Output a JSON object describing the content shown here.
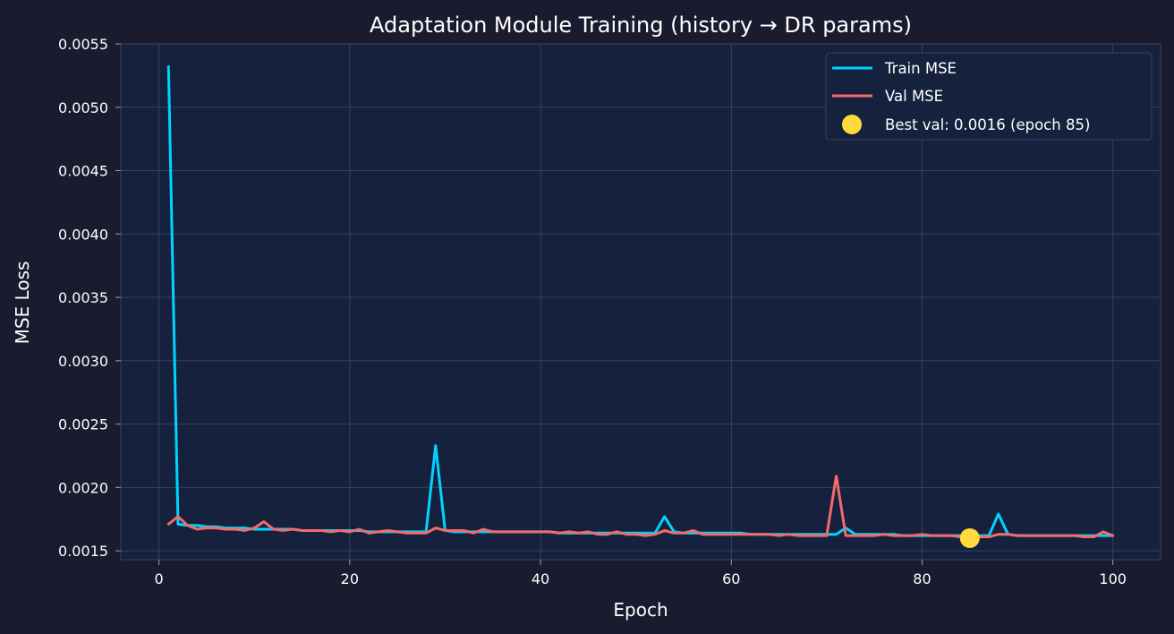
{
  "chart_data": {
    "type": "line",
    "title": "Adaptation Module Training (history → DR params)",
    "xlabel": "Epoch",
    "ylabel": "MSE Loss",
    "xlim": [
      -4,
      105
    ],
    "ylim": [
      0.00143,
      0.0055
    ],
    "x_ticks": [
      0,
      20,
      40,
      60,
      80,
      100
    ],
    "x_tick_labels": [
      "0",
      "20",
      "40",
      "60",
      "80",
      "100"
    ],
    "y_ticks": [
      0.0015,
      0.002,
      0.0025,
      0.003,
      0.0035,
      0.004,
      0.0045,
      0.005,
      0.0055
    ],
    "y_tick_labels": [
      "0.0015",
      "0.0020",
      "0.0025",
      "0.0030",
      "0.0035",
      "0.0040",
      "0.0045",
      "0.0050",
      "0.0055"
    ],
    "grid": true,
    "legend_position": "top-right",
    "colors": {
      "background": "#1a1b2e",
      "plot_area": "#16213e",
      "grid": "#3a4766",
      "spine": "#3a4460",
      "train": "#00d4ff",
      "val": "#f26b6b",
      "best": "#ffd93d"
    },
    "series": [
      {
        "name": "Train MSE",
        "color": "#00d4ff",
        "x": [
          1,
          2,
          3,
          4,
          5,
          6,
          7,
          8,
          9,
          10,
          11,
          12,
          13,
          14,
          15,
          16,
          17,
          18,
          19,
          20,
          21,
          22,
          23,
          24,
          25,
          26,
          27,
          28,
          29,
          30,
          31,
          32,
          33,
          34,
          35,
          36,
          37,
          38,
          39,
          40,
          41,
          42,
          43,
          44,
          45,
          46,
          47,
          48,
          49,
          50,
          51,
          52,
          53,
          54,
          55,
          56,
          57,
          58,
          59,
          60,
          61,
          62,
          63,
          64,
          65,
          66,
          67,
          68,
          69,
          70,
          71,
          72,
          73,
          74,
          75,
          76,
          77,
          78,
          79,
          80,
          81,
          82,
          83,
          84,
          85,
          86,
          87,
          88,
          89,
          90,
          91,
          92,
          93,
          94,
          95,
          96,
          97,
          98,
          99,
          100
        ],
        "values": [
          0.00532,
          0.00171,
          0.0017,
          0.0017,
          0.00169,
          0.00169,
          0.00168,
          0.00168,
          0.00168,
          0.00167,
          0.00167,
          0.00167,
          0.00167,
          0.00167,
          0.00166,
          0.00166,
          0.00166,
          0.00166,
          0.00166,
          0.00166,
          0.00166,
          0.00165,
          0.00165,
          0.00165,
          0.00165,
          0.00165,
          0.00165,
          0.00165,
          0.00233,
          0.00166,
          0.00165,
          0.00165,
          0.00165,
          0.00165,
          0.00165,
          0.00165,
          0.00165,
          0.00165,
          0.00165,
          0.00165,
          0.00165,
          0.00164,
          0.00164,
          0.00164,
          0.00164,
          0.00164,
          0.00164,
          0.00164,
          0.00164,
          0.00164,
          0.00164,
          0.00164,
          0.00177,
          0.00165,
          0.00164,
          0.00164,
          0.00164,
          0.00164,
          0.00164,
          0.00164,
          0.00164,
          0.00163,
          0.00163,
          0.00163,
          0.00163,
          0.00163,
          0.00163,
          0.00163,
          0.00163,
          0.00163,
          0.00163,
          0.00168,
          0.00163,
          0.00163,
          0.00163,
          0.00163,
          0.00163,
          0.00162,
          0.00162,
          0.00162,
          0.00162,
          0.00162,
          0.00162,
          0.00162,
          0.00162,
          0.00162,
          0.00162,
          0.00179,
          0.00163,
          0.00162,
          0.00162,
          0.00162,
          0.00162,
          0.00162,
          0.00162,
          0.00162,
          0.00162,
          0.00162,
          0.00162,
          0.00162
        ]
      },
      {
        "name": "Val MSE",
        "color": "#f26b6b",
        "x": [
          1,
          2,
          3,
          4,
          5,
          6,
          7,
          8,
          9,
          10,
          11,
          12,
          13,
          14,
          15,
          16,
          17,
          18,
          19,
          20,
          21,
          22,
          23,
          24,
          25,
          26,
          27,
          28,
          29,
          30,
          31,
          32,
          33,
          34,
          35,
          36,
          37,
          38,
          39,
          40,
          41,
          42,
          43,
          44,
          45,
          46,
          47,
          48,
          49,
          50,
          51,
          52,
          53,
          54,
          55,
          56,
          57,
          58,
          59,
          60,
          61,
          62,
          63,
          64,
          65,
          66,
          67,
          68,
          69,
          70,
          71,
          72,
          73,
          74,
          75,
          76,
          77,
          78,
          79,
          80,
          81,
          82,
          83,
          84,
          85,
          86,
          87,
          88,
          89,
          90,
          91,
          92,
          93,
          94,
          95,
          96,
          97,
          98,
          99,
          100
        ],
        "values": [
          0.00171,
          0.00177,
          0.0017,
          0.00167,
          0.00168,
          0.00168,
          0.00167,
          0.00167,
          0.00166,
          0.00168,
          0.00173,
          0.00167,
          0.00166,
          0.00167,
          0.00166,
          0.00166,
          0.00166,
          0.00165,
          0.00166,
          0.00165,
          0.00167,
          0.00164,
          0.00165,
          0.00166,
          0.00165,
          0.00164,
          0.00164,
          0.00164,
          0.00168,
          0.00166,
          0.00166,
          0.00166,
          0.00164,
          0.00167,
          0.00165,
          0.00165,
          0.00165,
          0.00165,
          0.00165,
          0.00165,
          0.00165,
          0.00164,
          0.00165,
          0.00164,
          0.00165,
          0.00163,
          0.00163,
          0.00165,
          0.00163,
          0.00163,
          0.00162,
          0.00163,
          0.00166,
          0.00164,
          0.00164,
          0.00166,
          0.00163,
          0.00163,
          0.00163,
          0.00163,
          0.00163,
          0.00163,
          0.00163,
          0.00163,
          0.00162,
          0.00163,
          0.00162,
          0.00162,
          0.00162,
          0.00162,
          0.00209,
          0.00162,
          0.00162,
          0.00162,
          0.00162,
          0.00163,
          0.00162,
          0.00162,
          0.00162,
          0.00163,
          0.00162,
          0.00162,
          0.00162,
          0.00161,
          0.00161,
          0.00161,
          0.00161,
          0.00163,
          0.00163,
          0.00162,
          0.00162,
          0.00162,
          0.00162,
          0.00162,
          0.00162,
          0.00162,
          0.00161,
          0.00161,
          0.00165,
          0.00162
        ]
      }
    ],
    "best_point": {
      "label": "Best val: 0.0016 (epoch 85)",
      "x": 85,
      "y": 0.0016,
      "color": "#ffd93d"
    }
  }
}
